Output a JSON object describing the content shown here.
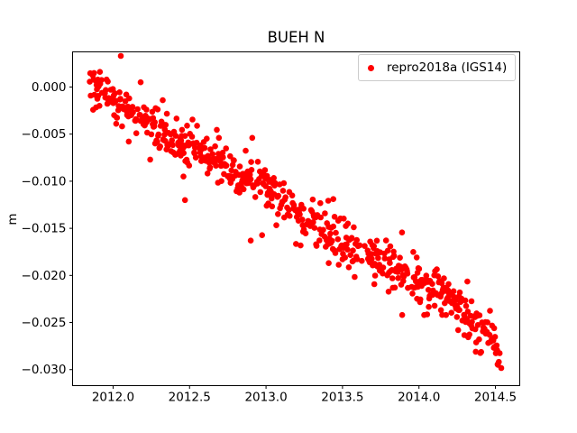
{
  "chart_data": {
    "type": "scatter",
    "title": "BUEH N",
    "xlabel": "",
    "ylabel": "m",
    "grid": false,
    "legend_position": "upper right",
    "xlim": [
      2011.735,
      2014.659
    ],
    "ylim": [
      -0.0317,
      0.00373
    ],
    "xtick_values": [
      2012.0,
      2012.5,
      2013.0,
      2013.5,
      2014.0,
      2014.5
    ],
    "xtick_labels": [
      "2012.0",
      "2012.5",
      "2013.0",
      "2013.5",
      "2014.0",
      "2014.5"
    ],
    "ytick_values": [
      0.0,
      -0.005,
      -0.01,
      -0.015,
      -0.02,
      -0.025,
      -0.03
    ],
    "ytick_labels": [
      "0.000",
      "−0.005",
      "−0.010",
      "−0.015",
      "−0.020",
      "−0.025",
      "−0.030"
    ],
    "series": [
      {
        "name": "repro2018a (IGS14)",
        "color": "#ff0000",
        "marker": "circle",
        "marker_radius_px": 3.3,
        "points_spec": {
          "seed": 7,
          "t_start": 2011.845,
          "t_end": 2014.545,
          "step_years": 0.00274,
          "dropout": 0.33,
          "gaps": [
            {
              "from": 2013.595,
              "to": 2013.665,
              "dropout": 0.85
            }
          ],
          "noise_sigma_m": 0.0011,
          "wild_noise_prob": 0.06,
          "wild_noise_scale": 2.1,
          "clamp_m": [
            -0.0312,
            0.0033
          ],
          "trend_anchors_year_m": [
            [
              2011.845,
              0.0005
            ],
            [
              2011.95,
              -0.0005
            ],
            [
              2012.05,
              -0.0018
            ],
            [
              2012.15,
              -0.0028
            ],
            [
              2012.25,
              -0.0042
            ],
            [
              2012.35,
              -0.0052
            ],
            [
              2012.45,
              -0.0058
            ],
            [
              2012.55,
              -0.0063
            ],
            [
              2012.65,
              -0.0072
            ],
            [
              2012.75,
              -0.0085
            ],
            [
              2012.82,
              -0.0094
            ],
            [
              2012.9,
              -0.0092
            ],
            [
              2013.0,
              -0.011
            ],
            [
              2013.1,
              -0.0118
            ],
            [
              2013.2,
              -0.013
            ],
            [
              2013.3,
              -0.0143
            ],
            [
              2013.4,
              -0.0151
            ],
            [
              2013.5,
              -0.0165
            ],
            [
              2013.6,
              -0.017
            ],
            [
              2013.7,
              -0.0178
            ],
            [
              2013.8,
              -0.0185
            ],
            [
              2013.9,
              -0.0198
            ],
            [
              2014.0,
              -0.0206
            ],
            [
              2014.1,
              -0.0214
            ],
            [
              2014.2,
              -0.0224
            ],
            [
              2014.3,
              -0.024
            ],
            [
              2014.4,
              -0.025
            ],
            [
              2014.47,
              -0.026
            ],
            [
              2014.5,
              -0.0272
            ],
            [
              2014.545,
              -0.0302
            ]
          ],
          "outliers_year_m": [
            [
              2012.18,
              0.0005
            ],
            [
              2012.46,
              -0.0095
            ],
            [
              2012.47,
              -0.012
            ],
            [
              2012.9,
              -0.0163
            ],
            [
              2012.91,
              -0.0054
            ],
            [
              2013.41,
              -0.0187
            ],
            [
              2013.44,
              -0.0119
            ],
            [
              2013.89,
              -0.0242
            ]
          ]
        }
      }
    ]
  },
  "legend": {
    "entries": [
      {
        "label": "repro2018a (IGS14)",
        "color": "#ff0000"
      }
    ]
  },
  "colors": {
    "marker": "#ff0000",
    "axis": "#000000",
    "legend_border": "#cccccc",
    "background": "#ffffff"
  }
}
